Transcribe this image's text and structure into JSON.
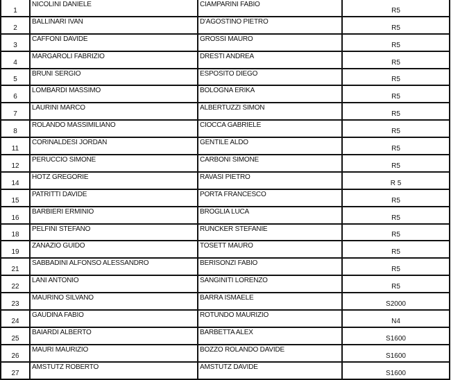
{
  "rows": [
    {
      "num": "1",
      "driver": "NICOLINI DANIELE",
      "codriver": "CIAMPARINI FABIO",
      "class": "R5"
    },
    {
      "num": "2",
      "driver": "BALLINARI IVAN",
      "codriver": "D'AGOSTINO PIETRO",
      "class": "R5"
    },
    {
      "num": "3",
      "driver": "CAFFONI DAVIDE",
      "codriver": "GROSSI MAURO",
      "class": "R5"
    },
    {
      "num": "4",
      "driver": "MARGAROLI FABRIZIO",
      "codriver": "DRESTI ANDREA",
      "class": "R5"
    },
    {
      "num": "5",
      "driver": "BRUNI SERGIO",
      "codriver": "ESPOSITO DIEGO",
      "class": "R5"
    },
    {
      "num": "6",
      "driver": "LOMBARDI MASSIMO",
      "codriver": "BOLOGNA ERIKA",
      "class": "R5"
    },
    {
      "num": "7",
      "driver": "LAURINI MARCO",
      "codriver": "ALBERTUZZI SIMON",
      "class": "R5"
    },
    {
      "num": "8",
      "driver": "ROLANDO MASSIMILIANO",
      "codriver": "CIOCCA GABRIELE",
      "class": "R5"
    },
    {
      "num": "11",
      "driver": "CORINALDESI JORDAN",
      "codriver": "GENTILE ALDO",
      "class": "R5"
    },
    {
      "num": "12",
      "driver": "PERUCCIO SIMONE",
      "codriver": "CARBONI SIMONE",
      "class": "R5"
    },
    {
      "num": "14",
      "driver": "HOTZ GREGORIE",
      "codriver": "RAVASI PIETRO",
      "class": "R 5"
    },
    {
      "num": "15",
      "driver": "PATRITTI DAVIDE",
      "codriver": "PORTA FRANCESCO",
      "class": "R5"
    },
    {
      "num": "16",
      "driver": "BARBIERI ERMINIO",
      "codriver": "BROGLIA LUCA",
      "class": "R5"
    },
    {
      "num": "18",
      "driver": "PELFINI STEFANO",
      "codriver": "RUNCKER STEFANIE",
      "class": "R5"
    },
    {
      "num": "19",
      "driver": "ZANAZIO GUIDO",
      "codriver": "TOSETT MAURO",
      "class": "R5"
    },
    {
      "num": "21",
      "driver": "SABBADINI ALFONSO ALESSANDRO",
      "codriver": "BERISONZI FABIO",
      "class": "R5"
    },
    {
      "num": "22",
      "driver": "LANI ANTONIO",
      "codriver": "SANGINITI LORENZO",
      "class": "R5"
    },
    {
      "num": "23",
      "driver": "MAURINO SILVANO",
      "codriver": "BARRA ISMAELE",
      "class": "S2000"
    },
    {
      "num": "24",
      "driver": "GAUDINA FABIO",
      "codriver": "ROTUNDO MAURIZIO",
      "class": "N4"
    },
    {
      "num": "25",
      "driver": "BAIARDI ALBERTO",
      "codriver": "BARBETTA ALEX",
      "class": "S1600"
    },
    {
      "num": "26",
      "driver": "MAURI MAURIZIO",
      "codriver": "BOZZO ROLANDO DAVIDE",
      "class": "S1600"
    },
    {
      "num": "27",
      "driver": "AMSTUTZ ROBERTO",
      "codriver": "AMSTUTZ DAVIDE",
      "class": "S1600"
    }
  ]
}
